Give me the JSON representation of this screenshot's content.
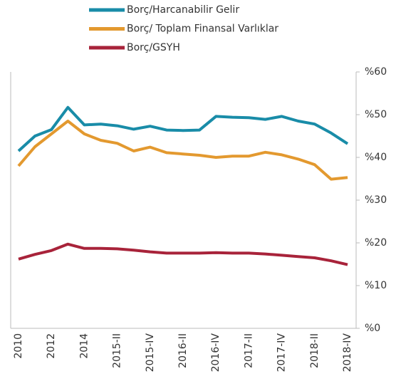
{
  "chart_data": {
    "type": "line",
    "categories": [
      "2010",
      null,
      "2012",
      null,
      "2014",
      null,
      "2015-II",
      null,
      "2015-IV",
      null,
      "2016-II",
      null,
      "2016-IV",
      null,
      "2017-II",
      null,
      "2017-IV",
      null,
      "2018-II",
      null,
      "2018-IV"
    ],
    "series": [
      {
        "name": "Borç/Harcanabilir Gelir",
        "color": "#198ca8",
        "values": [
          41.5,
          45,
          46.5,
          51.7,
          47.6,
          47.8,
          47.4,
          46.6,
          47.3,
          46.4,
          46.3,
          46.4,
          49.6,
          49.4,
          49.3,
          48.9,
          49.6,
          48.5,
          47.8,
          45.7,
          43.2
        ]
      },
      {
        "name": "Borç/ Toplam Finansal Varlıklar",
        "color": "#e3992f",
        "values": [
          38,
          42.5,
          45.5,
          48.5,
          45.5,
          44,
          43.3,
          41.5,
          42.4,
          41.1,
          40.8,
          40.5,
          40,
          40.3,
          40.3,
          41.2,
          40.6,
          39.6,
          38.3,
          34.9,
          35.3
        ]
      },
      {
        "name": "Borç/GSYH",
        "color": "#a8233a",
        "values": [
          16.2,
          17.3,
          18.2,
          19.7,
          18.7,
          18.7,
          18.6,
          18.3,
          17.9,
          17.6,
          17.6,
          17.6,
          17.7,
          17.6,
          17.6,
          17.4,
          17.1,
          16.8,
          16.5,
          15.8,
          14.9
        ]
      }
    ],
    "ylim": [
      0,
      60
    ],
    "yticks": [
      {
        "value": 0,
        "label": "%0"
      },
      {
        "value": 10,
        "label": "%10"
      },
      {
        "value": 20,
        "label": "%20"
      },
      {
        "value": 30,
        "label": "%30"
      },
      {
        "value": 40,
        "label": "%40"
      },
      {
        "value": 50,
        "label": "%50"
      },
      {
        "value": 60,
        "label": "%60"
      }
    ],
    "grid": false
  }
}
